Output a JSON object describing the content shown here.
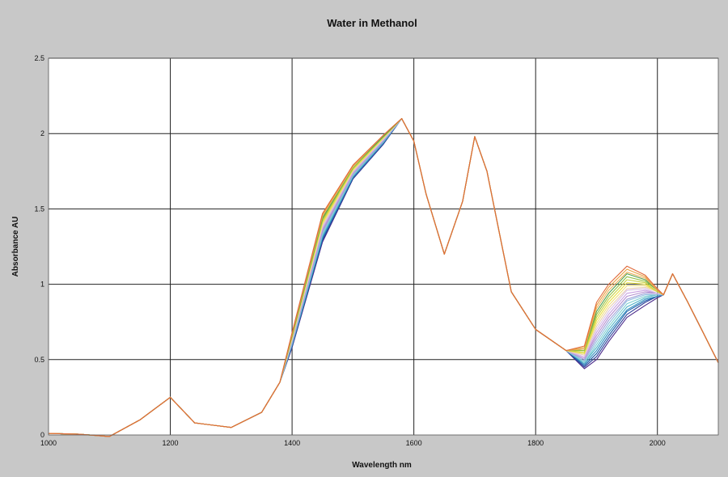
{
  "chart_data": {
    "type": "line",
    "title": "Water in Methanol",
    "xlabel": "Wavelength  nm",
    "ylabel": "Absorbance  AU",
    "xlim": [
      1000,
      2100
    ],
    "ylim": [
      0,
      2.5
    ],
    "x_ticks": [
      1000,
      1200,
      1400,
      1600,
      1800,
      2000
    ],
    "y_ticks": [
      0,
      0.5,
      1,
      1.5,
      2,
      2.5
    ],
    "x_tick_labels": [
      "1000",
      "1200",
      "1400",
      "1600",
      "1800",
      "2000"
    ],
    "y_tick_labels": [
      "0",
      "0.5",
      "1",
      "1.5",
      "2",
      "2.5"
    ],
    "grid": true,
    "legend": "none",
    "background": "#c8c8c8",
    "plot_background": "#ffffff",
    "series_colors": [
      "#4a2a8a",
      "#2d3f9a",
      "#1f5fa8",
      "#2f8fbf",
      "#4fb3c8",
      "#7ccfd0",
      "#8fbfe0",
      "#a0a0d8",
      "#b58fd0",
      "#c8a0e0",
      "#d8c0e8",
      "#e8d0b0",
      "#f0e080",
      "#e8e040",
      "#c8d040",
      "#8fbf3f",
      "#4fa04f",
      "#f0b060",
      "#e8a040",
      "#e06a3a"
    ],
    "x": [
      1000,
      1050,
      1100,
      1150,
      1200,
      1240,
      1300,
      1350,
      1380,
      1400,
      1450,
      1500,
      1550,
      1580,
      1600,
      1620,
      1650,
      1680,
      1700,
      1720,
      1740,
      1760,
      1800,
      1850,
      1880,
      1900,
      1920,
      1950,
      1980,
      2000,
      2010,
      2025,
      2050,
      2100
    ],
    "series": [
      {
        "values": [
          0.01,
          0.005,
          -0.01,
          0.1,
          0.25,
          0.08,
          0.05,
          0.15,
          0.35,
          0.58,
          1.28,
          1.7,
          1.93,
          2.1,
          1.95,
          1.6,
          1.2,
          1.55,
          1.98,
          1.75,
          1.35,
          0.95,
          0.7,
          0.56,
          0.44,
          0.5,
          0.62,
          0.78,
          0.86,
          0.91,
          0.93,
          1.07,
          0.88,
          0.48
        ]
      },
      {
        "values": [
          0.01,
          0.005,
          -0.01,
          0.1,
          0.25,
          0.08,
          0.05,
          0.15,
          0.35,
          0.59,
          1.29,
          1.7,
          1.93,
          2.1,
          1.95,
          1.6,
          1.2,
          1.55,
          1.98,
          1.75,
          1.35,
          0.95,
          0.7,
          0.56,
          0.45,
          0.52,
          0.64,
          0.8,
          0.88,
          0.92,
          0.93,
          1.07,
          0.88,
          0.48
        ]
      },
      {
        "values": [
          0.01,
          0.005,
          -0.01,
          0.1,
          0.25,
          0.08,
          0.05,
          0.15,
          0.35,
          0.59,
          1.3,
          1.71,
          1.94,
          2.1,
          1.95,
          1.6,
          1.2,
          1.55,
          1.98,
          1.75,
          1.35,
          0.95,
          0.7,
          0.56,
          0.46,
          0.54,
          0.66,
          0.82,
          0.89,
          0.92,
          0.93,
          1.07,
          0.88,
          0.48
        ]
      },
      {
        "values": [
          0.01,
          0.005,
          -0.01,
          0.1,
          0.25,
          0.08,
          0.05,
          0.15,
          0.35,
          0.6,
          1.31,
          1.71,
          1.94,
          2.1,
          1.95,
          1.6,
          1.2,
          1.55,
          1.98,
          1.75,
          1.35,
          0.95,
          0.7,
          0.56,
          0.47,
          0.56,
          0.68,
          0.83,
          0.9,
          0.92,
          0.93,
          1.07,
          0.88,
          0.48
        ]
      },
      {
        "values": [
          0.01,
          0.005,
          -0.01,
          0.1,
          0.25,
          0.08,
          0.05,
          0.15,
          0.35,
          0.6,
          1.32,
          1.72,
          1.94,
          2.1,
          1.95,
          1.6,
          1.2,
          1.55,
          1.98,
          1.75,
          1.35,
          0.95,
          0.7,
          0.56,
          0.48,
          0.58,
          0.7,
          0.85,
          0.91,
          0.93,
          0.93,
          1.07,
          0.88,
          0.48
        ]
      },
      {
        "values": [
          0.01,
          0.005,
          -0.01,
          0.1,
          0.25,
          0.08,
          0.05,
          0.15,
          0.35,
          0.61,
          1.33,
          1.72,
          1.95,
          2.1,
          1.95,
          1.6,
          1.2,
          1.55,
          1.98,
          1.75,
          1.35,
          0.95,
          0.7,
          0.56,
          0.48,
          0.6,
          0.72,
          0.87,
          0.92,
          0.93,
          0.93,
          1.07,
          0.88,
          0.48
        ]
      },
      {
        "values": [
          0.01,
          0.005,
          -0.01,
          0.1,
          0.25,
          0.08,
          0.05,
          0.15,
          0.35,
          0.61,
          1.34,
          1.73,
          1.95,
          2.1,
          1.95,
          1.6,
          1.2,
          1.55,
          1.98,
          1.75,
          1.35,
          0.95,
          0.7,
          0.56,
          0.49,
          0.62,
          0.74,
          0.89,
          0.93,
          0.93,
          0.93,
          1.07,
          0.88,
          0.48
        ]
      },
      {
        "values": [
          0.01,
          0.005,
          -0.01,
          0.1,
          0.25,
          0.08,
          0.05,
          0.15,
          0.35,
          0.62,
          1.35,
          1.73,
          1.95,
          2.1,
          1.95,
          1.6,
          1.2,
          1.55,
          1.98,
          1.75,
          1.35,
          0.95,
          0.7,
          0.56,
          0.5,
          0.64,
          0.76,
          0.9,
          0.94,
          0.94,
          0.93,
          1.07,
          0.88,
          0.48
        ]
      },
      {
        "values": [
          0.01,
          0.005,
          -0.01,
          0.1,
          0.25,
          0.08,
          0.05,
          0.15,
          0.35,
          0.62,
          1.36,
          1.74,
          1.96,
          2.1,
          1.95,
          1.6,
          1.2,
          1.55,
          1.98,
          1.75,
          1.35,
          0.95,
          0.7,
          0.56,
          0.51,
          0.66,
          0.78,
          0.92,
          0.95,
          0.94,
          0.93,
          1.07,
          0.88,
          0.48
        ]
      },
      {
        "values": [
          0.01,
          0.005,
          -0.01,
          0.1,
          0.25,
          0.08,
          0.05,
          0.15,
          0.35,
          0.63,
          1.37,
          1.74,
          1.96,
          2.1,
          1.95,
          1.6,
          1.2,
          1.55,
          1.98,
          1.75,
          1.35,
          0.95,
          0.7,
          0.56,
          0.51,
          0.68,
          0.8,
          0.94,
          0.96,
          0.94,
          0.93,
          1.07,
          0.88,
          0.48
        ]
      },
      {
        "values": [
          0.01,
          0.005,
          -0.01,
          0.1,
          0.25,
          0.08,
          0.05,
          0.15,
          0.35,
          0.63,
          1.38,
          1.75,
          1.96,
          2.1,
          1.95,
          1.6,
          1.2,
          1.55,
          1.98,
          1.75,
          1.35,
          0.95,
          0.7,
          0.56,
          0.52,
          0.7,
          0.82,
          0.96,
          0.97,
          0.94,
          0.93,
          1.07,
          0.88,
          0.48
        ]
      },
      {
        "values": [
          0.01,
          0.005,
          -0.01,
          0.1,
          0.25,
          0.08,
          0.05,
          0.15,
          0.35,
          0.64,
          1.39,
          1.75,
          1.97,
          2.1,
          1.95,
          1.6,
          1.2,
          1.55,
          1.98,
          1.75,
          1.35,
          0.95,
          0.7,
          0.56,
          0.53,
          0.72,
          0.84,
          0.97,
          0.98,
          0.95,
          0.93,
          1.07,
          0.88,
          0.48
        ]
      },
      {
        "values": [
          0.01,
          0.005,
          -0.01,
          0.1,
          0.25,
          0.08,
          0.05,
          0.15,
          0.35,
          0.64,
          1.4,
          1.76,
          1.97,
          2.1,
          1.95,
          1.6,
          1.2,
          1.55,
          1.98,
          1.75,
          1.35,
          0.95,
          0.7,
          0.56,
          0.54,
          0.74,
          0.86,
          0.99,
          0.99,
          0.95,
          0.93,
          1.07,
          0.88,
          0.48
        ]
      },
      {
        "values": [
          0.01,
          0.005,
          -0.01,
          0.1,
          0.25,
          0.08,
          0.05,
          0.15,
          0.35,
          0.65,
          1.41,
          1.76,
          1.97,
          2.1,
          1.95,
          1.6,
          1.2,
          1.55,
          1.98,
          1.75,
          1.35,
          0.95,
          0.7,
          0.56,
          0.54,
          0.76,
          0.88,
          1.01,
          1.0,
          0.95,
          0.93,
          1.07,
          0.88,
          0.48
        ]
      },
      {
        "values": [
          0.01,
          0.005,
          -0.01,
          0.1,
          0.25,
          0.08,
          0.05,
          0.15,
          0.35,
          0.65,
          1.42,
          1.77,
          1.98,
          2.1,
          1.95,
          1.6,
          1.2,
          1.55,
          1.98,
          1.75,
          1.35,
          0.95,
          0.7,
          0.56,
          0.55,
          0.78,
          0.9,
          1.03,
          1.01,
          0.95,
          0.93,
          1.07,
          0.88,
          0.48
        ]
      },
      {
        "values": [
          0.01,
          0.005,
          -0.01,
          0.1,
          0.25,
          0.08,
          0.05,
          0.15,
          0.35,
          0.66,
          1.43,
          1.77,
          1.98,
          2.1,
          1.95,
          1.6,
          1.2,
          1.55,
          1.98,
          1.75,
          1.35,
          0.95,
          0.7,
          0.56,
          0.56,
          0.8,
          0.92,
          1.05,
          1.02,
          0.96,
          0.93,
          1.07,
          0.88,
          0.48
        ]
      },
      {
        "values": [
          0.01,
          0.005,
          -0.01,
          0.1,
          0.25,
          0.08,
          0.05,
          0.15,
          0.35,
          0.66,
          1.44,
          1.78,
          1.98,
          2.1,
          1.95,
          1.6,
          1.2,
          1.55,
          1.98,
          1.75,
          1.35,
          0.95,
          0.7,
          0.56,
          0.57,
          0.82,
          0.94,
          1.07,
          1.03,
          0.96,
          0.93,
          1.07,
          0.88,
          0.48
        ]
      },
      {
        "values": [
          0.01,
          0.005,
          -0.01,
          0.1,
          0.25,
          0.08,
          0.05,
          0.15,
          0.35,
          0.67,
          1.45,
          1.78,
          1.99,
          2.1,
          1.95,
          1.6,
          1.2,
          1.55,
          1.98,
          1.75,
          1.35,
          0.95,
          0.7,
          0.56,
          0.57,
          0.84,
          0.96,
          1.08,
          1.04,
          0.96,
          0.93,
          1.07,
          0.88,
          0.48
        ]
      },
      {
        "values": [
          0.01,
          0.005,
          -0.01,
          0.1,
          0.25,
          0.08,
          0.05,
          0.15,
          0.35,
          0.67,
          1.46,
          1.79,
          1.99,
          2.1,
          1.95,
          1.6,
          1.2,
          1.55,
          1.98,
          1.75,
          1.35,
          0.95,
          0.7,
          0.56,
          0.58,
          0.86,
          0.98,
          1.1,
          1.05,
          0.96,
          0.93,
          1.07,
          0.88,
          0.48
        ]
      },
      {
        "values": [
          0.01,
          0.005,
          -0.01,
          0.1,
          0.25,
          0.08,
          0.05,
          0.15,
          0.35,
          0.68,
          1.47,
          1.79,
          1.99,
          2.1,
          1.95,
          1.6,
          1.2,
          1.55,
          1.98,
          1.75,
          1.35,
          0.95,
          0.7,
          0.56,
          0.59,
          0.88,
          1.0,
          1.12,
          1.06,
          0.97,
          0.93,
          1.07,
          0.88,
          0.48
        ]
      }
    ]
  }
}
